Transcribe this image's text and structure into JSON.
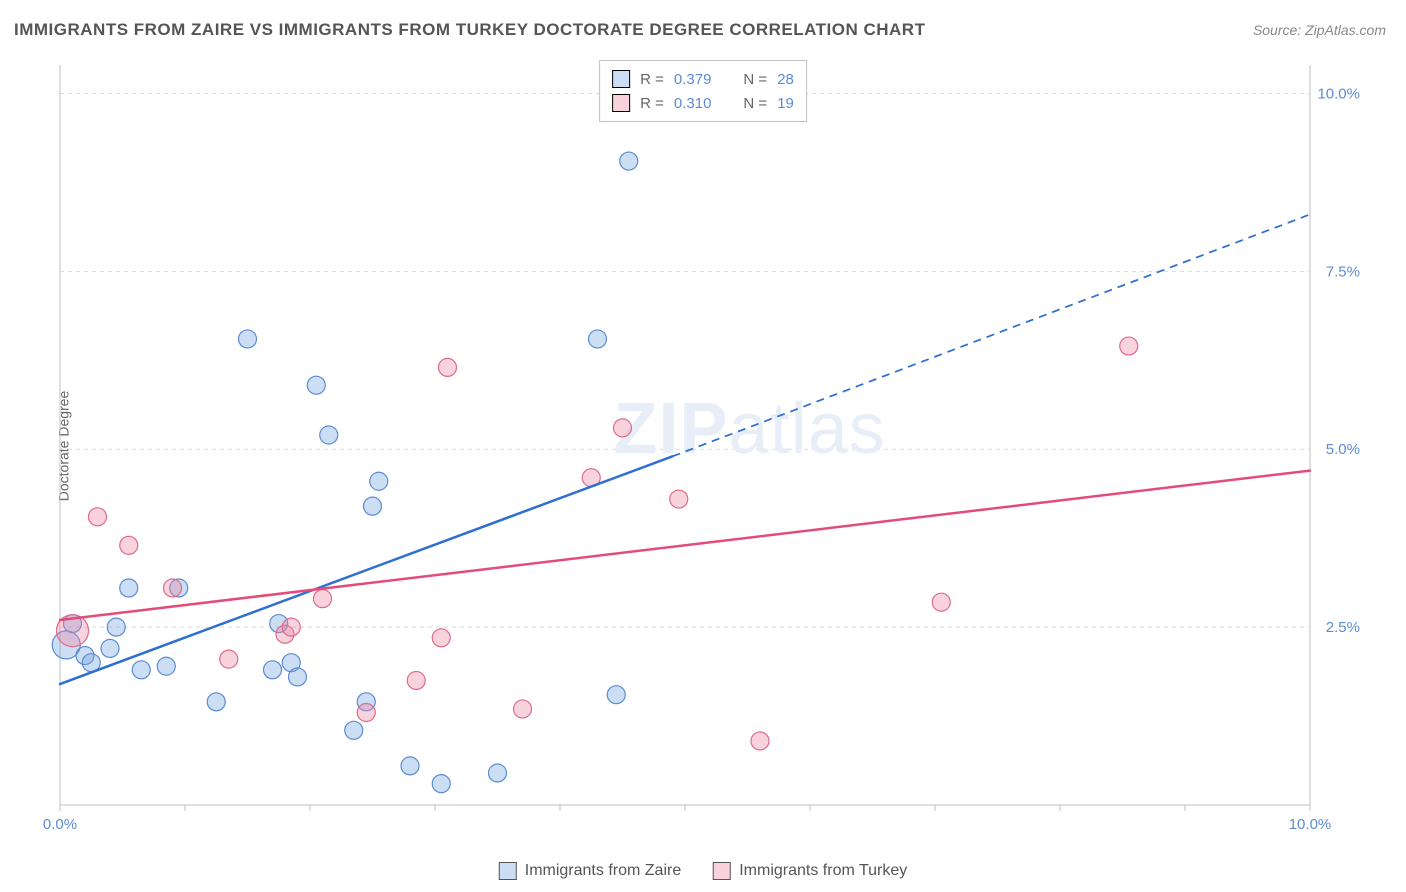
{
  "title": "IMMIGRANTS FROM ZAIRE VS IMMIGRANTS FROM TURKEY DOCTORATE DEGREE CORRELATION CHART",
  "source": "Source: ZipAtlas.com",
  "ylabel": "Doctorate Degree",
  "watermark": "ZIPatlas",
  "chart": {
    "type": "scatter",
    "xlim": [
      0.0,
      10.0
    ],
    "ylim": [
      0.0,
      10.4
    ],
    "ytick_step": 2.5,
    "ytick_labels": [
      "2.5%",
      "5.0%",
      "7.5%",
      "10.0%"
    ],
    "xtick_labels": [
      "0.0%",
      "10.0%"
    ],
    "xtick_minor_step": 1.0,
    "background_color": "#ffffff",
    "grid_color": "#d9d9d9",
    "axis_color": "#bfbfbf",
    "tick_label_color": "#5b8bd4",
    "marker_radius": 9,
    "marker_opacity": 0.35,
    "series": [
      {
        "name": "Immigrants from Zaire",
        "color_fill": "rgba(110,160,220,0.35)",
        "color_stroke": "#5b8bd4",
        "R": "0.379",
        "N": "28",
        "trend": {
          "x1": 0.0,
          "y1": 1.7,
          "x2": 4.9,
          "y2": 4.9,
          "dash_x2": 10.0,
          "dash_y2": 8.3,
          "color": "#2e6fd1",
          "width": 2.5
        },
        "points": [
          {
            "x": 0.05,
            "y": 2.25,
            "r": 14
          },
          {
            "x": 0.1,
            "y": 2.55
          },
          {
            "x": 0.2,
            "y": 2.1
          },
          {
            "x": 0.25,
            "y": 2.0
          },
          {
            "x": 0.4,
            "y": 2.2
          },
          {
            "x": 0.45,
            "y": 2.5
          },
          {
            "x": 0.55,
            "y": 3.05
          },
          {
            "x": 0.65,
            "y": 1.9
          },
          {
            "x": 0.85,
            "y": 1.95
          },
          {
            "x": 0.95,
            "y": 3.05
          },
          {
            "x": 1.25,
            "y": 1.45
          },
          {
            "x": 1.5,
            "y": 6.55
          },
          {
            "x": 1.7,
            "y": 1.9
          },
          {
            "x": 1.75,
            "y": 2.55
          },
          {
            "x": 1.85,
            "y": 2.0
          },
          {
            "x": 1.9,
            "y": 1.8
          },
          {
            "x": 2.05,
            "y": 5.9
          },
          {
            "x": 2.15,
            "y": 5.2
          },
          {
            "x": 2.35,
            "y": 1.05
          },
          {
            "x": 2.5,
            "y": 4.2
          },
          {
            "x": 2.55,
            "y": 4.55
          },
          {
            "x": 2.45,
            "y": 1.45
          },
          {
            "x": 2.8,
            "y": 0.55
          },
          {
            "x": 3.05,
            "y": 0.3
          },
          {
            "x": 3.5,
            "y": 0.45
          },
          {
            "x": 4.3,
            "y": 6.55
          },
          {
            "x": 4.45,
            "y": 1.55
          },
          {
            "x": 4.55,
            "y": 9.05
          }
        ]
      },
      {
        "name": "Immigrants from Turkey",
        "color_fill": "rgba(235,130,160,0.35)",
        "color_stroke": "#e06a8a",
        "R": "0.310",
        "N": "19",
        "trend": {
          "x1": 0.0,
          "y1": 2.6,
          "x2": 10.0,
          "y2": 4.7,
          "color": "#e34b78",
          "width": 2.5
        },
        "points": [
          {
            "x": 0.1,
            "y": 2.45,
            "r": 16
          },
          {
            "x": 0.3,
            "y": 4.05
          },
          {
            "x": 0.55,
            "y": 3.65
          },
          {
            "x": 0.9,
            "y": 3.05
          },
          {
            "x": 1.35,
            "y": 2.05
          },
          {
            "x": 1.8,
            "y": 2.4
          },
          {
            "x": 1.85,
            "y": 2.5
          },
          {
            "x": 2.1,
            "y": 2.9
          },
          {
            "x": 2.45,
            "y": 1.3
          },
          {
            "x": 2.85,
            "y": 1.75
          },
          {
            "x": 3.05,
            "y": 2.35
          },
          {
            "x": 3.1,
            "y": 6.15
          },
          {
            "x": 3.7,
            "y": 1.35
          },
          {
            "x": 4.25,
            "y": 4.6
          },
          {
            "x": 4.5,
            "y": 5.3
          },
          {
            "x": 4.95,
            "y": 4.3
          },
          {
            "x": 5.6,
            "y": 0.9
          },
          {
            "x": 7.05,
            "y": 2.85
          },
          {
            "x": 8.55,
            "y": 6.45
          }
        ]
      }
    ]
  },
  "legend_top": {
    "rows": [
      {
        "sw_class": "sw-blue",
        "r_label": "R =",
        "r_val": "0.379",
        "n_label": "N =",
        "n_val": "28"
      },
      {
        "sw_class": "sw-pink",
        "r_label": "R =",
        "r_val": "0.310",
        "n_label": "N =",
        "n_val": "19"
      }
    ]
  },
  "legend_bottom": [
    {
      "sw_class": "sw-blue",
      "label": "Immigrants from Zaire"
    },
    {
      "sw_class": "sw-pink",
      "label": "Immigrants from Turkey"
    }
  ]
}
